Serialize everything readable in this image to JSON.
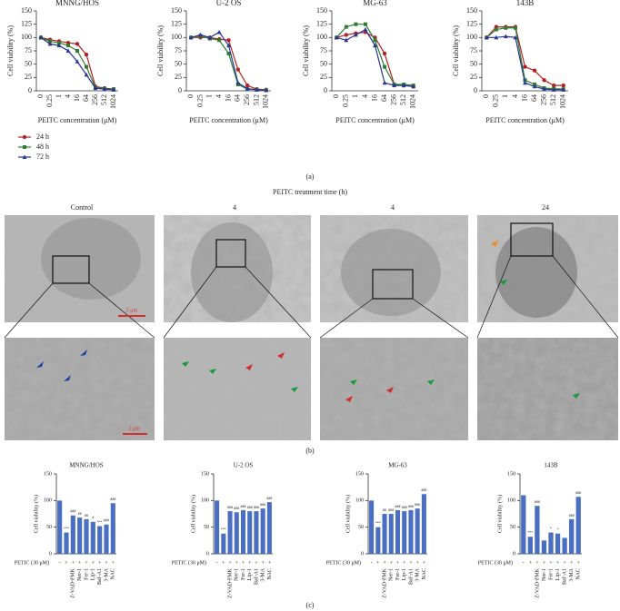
{
  "chart_data": [
    {
      "type": "line",
      "title": "MNNG/HOS",
      "ylabel": "Cell viability (%)",
      "xlabel": "PEITC concentration (μM)",
      "categories": [
        "0",
        "0.25",
        "1",
        "4",
        "16",
        "64",
        "256",
        "512",
        "1024"
      ],
      "ylim": [
        0,
        150
      ],
      "yticks": [
        0,
        25,
        50,
        75,
        100,
        125,
        150
      ],
      "legend": true,
      "series": [
        {
          "name": "24 h",
          "color": "#b22222",
          "marker": "circle",
          "values": [
            100,
            96,
            93,
            90,
            88,
            68,
            8,
            5,
            3
          ]
        },
        {
          "name": "48 h",
          "color": "#2e7d32",
          "marker": "square",
          "values": [
            100,
            93,
            90,
            85,
            75,
            45,
            6,
            4,
            3
          ]
        },
        {
          "name": "72 h",
          "color": "#283593",
          "marker": "triangle",
          "values": [
            100,
            88,
            85,
            75,
            55,
            30,
            5,
            3,
            2
          ]
        }
      ]
    },
    {
      "type": "line",
      "title": "U-2 OS",
      "ylabel": "Cell viability (%)",
      "xlabel": "PEITC concentration (μM)",
      "categories": [
        "0",
        "0.25",
        "1",
        "4",
        "16",
        "64",
        "256",
        "512",
        "1024"
      ],
      "ylim": [
        0,
        150
      ],
      "yticks": [
        0,
        25,
        50,
        75,
        100,
        125,
        150
      ],
      "series": [
        {
          "color": "#b22222",
          "marker": "circle",
          "values": [
            100,
            100,
            100,
            97,
            95,
            40,
            10,
            3,
            2
          ]
        },
        {
          "color": "#2e7d32",
          "marker": "square",
          "values": [
            100,
            103,
            98,
            95,
            70,
            12,
            3,
            2,
            1
          ]
        },
        {
          "color": "#283593",
          "marker": "triangle",
          "values": [
            100,
            105,
            100,
            110,
            85,
            15,
            4,
            2,
            1
          ]
        }
      ]
    },
    {
      "type": "line",
      "title": "MG-63",
      "ylabel": "Cell viability (%)",
      "xlabel": "PEITC concentration (μM)",
      "categories": [
        "0",
        "0.25",
        "1",
        "4",
        "16",
        "64",
        "256",
        "512",
        "1024"
      ],
      "ylim": [
        0,
        150
      ],
      "yticks": [
        0,
        25,
        50,
        75,
        100,
        125,
        150
      ],
      "series": [
        {
          "color": "#b22222",
          "marker": "circle",
          "values": [
            100,
            105,
            108,
            110,
            100,
            70,
            12,
            10,
            8
          ]
        },
        {
          "color": "#2e7d32",
          "marker": "square",
          "values": [
            100,
            120,
            125,
            125,
            95,
            45,
            12,
            12,
            10
          ]
        },
        {
          "color": "#283593",
          "marker": "triangle",
          "values": [
            100,
            95,
            105,
            115,
            85,
            15,
            10,
            10,
            8
          ]
        }
      ]
    },
    {
      "type": "line",
      "title": "143B",
      "ylabel": "Cell viability (%)",
      "xlabel": "PEITC concentration (μM)",
      "categories": [
        "0",
        "0.25",
        "1",
        "4",
        "16",
        "64",
        "256",
        "512",
        "1024"
      ],
      "ylim": [
        0,
        150
      ],
      "yticks": [
        0,
        25,
        50,
        75,
        100,
        125,
        150
      ],
      "series": [
        {
          "color": "#b22222",
          "marker": "circle",
          "values": [
            100,
            120,
            120,
            120,
            45,
            38,
            20,
            10,
            10
          ]
        },
        {
          "color": "#2e7d32",
          "marker": "square",
          "values": [
            100,
            115,
            118,
            118,
            20,
            12,
            5,
            4,
            3
          ]
        },
        {
          "color": "#283593",
          "marker": "triangle",
          "values": [
            100,
            100,
            102,
            100,
            15,
            8,
            3,
            2,
            2
          ]
        }
      ]
    },
    {
      "type": "bar",
      "title": "MNNG/HOS",
      "ylabel": "Cell viability (%)",
      "row_label": "PETIC (30 μM)",
      "color": "#4a6fc1",
      "treatment_row": [
        "-",
        "+",
        "+",
        "+",
        "+",
        "+",
        "+",
        "+",
        "+"
      ],
      "categories": [
        null,
        null,
        "Z-VAD-FMK",
        "Ner-1",
        "Fer-1",
        "Lip-1",
        "Baf-A1",
        "3-MA",
        "NAC"
      ],
      "values": [
        100,
        40,
        72,
        68,
        65,
        60,
        52,
        55,
        95
      ],
      "annotations": [
        null,
        "***",
        "###",
        "##",
        "##",
        "#",
        "***",
        "###",
        "###"
      ],
      "ylim": [
        0,
        150
      ],
      "yticks": [
        0,
        50,
        100,
        150
      ]
    },
    {
      "type": "bar",
      "title": "U-2 OS",
      "ylabel": "Cell viability (%)",
      "row_label": "PETIC (30 μM)",
      "color": "#4a6fc1",
      "treatment_row": [
        "-",
        "+",
        "+",
        "+",
        "+",
        "+",
        "+",
        "+",
        "+"
      ],
      "categories": [
        null,
        null,
        "Z-VAD-FMK",
        "Ner-1",
        "Fer-1",
        "Lip-1",
        "Baf-A1",
        "3-MA",
        "NAC"
      ],
      "values": [
        100,
        38,
        80,
        78,
        82,
        80,
        80,
        85,
        97
      ],
      "annotations": [
        null,
        "***",
        "###",
        "###",
        "###",
        "###",
        "###",
        "###",
        "###"
      ],
      "ylim": [
        0,
        150
      ],
      "yticks": [
        0,
        50,
        100,
        150
      ]
    },
    {
      "type": "bar",
      "title": "MG-63",
      "ylabel": "Cell viability (%)",
      "row_label": "PETIC (30 μM)",
      "color": "#4a6fc1",
      "treatment_row": [
        "-",
        "+",
        "+",
        "+",
        "+",
        "+",
        "+",
        "+",
        "+"
      ],
      "categories": [
        null,
        null,
        "Z-VAD-FMK",
        "Ner-1",
        "Fer-1",
        "Lip-1",
        "Baf-A1",
        "3-MA",
        "NAC"
      ],
      "values": [
        100,
        50,
        75,
        75,
        82,
        80,
        82,
        85,
        112
      ],
      "annotations": [
        null,
        "***",
        "##",
        "###",
        "###",
        "###",
        "###",
        "###",
        "###"
      ],
      "ylim": [
        0,
        150
      ],
      "yticks": [
        0,
        50,
        100,
        150
      ]
    },
    {
      "type": "bar",
      "title": "143B",
      "ylabel": "Cell viability (%)",
      "row_label": "PETIC (30 μM)",
      "color": "#4a6fc1",
      "treatment_row": [
        "-",
        "+",
        "+",
        "+",
        "+",
        "+",
        "+",
        "+",
        "+"
      ],
      "categories": [
        null,
        null,
        "Z-VAD-FMK",
        "Ner-1",
        "Fer-1",
        "Lip-1",
        "Baf-A1",
        "3-MA",
        "NAC"
      ],
      "values": [
        110,
        32,
        90,
        25,
        40,
        38,
        30,
        65,
        107
      ],
      "annotations": [
        null,
        "***",
        "###",
        null,
        "*",
        "*",
        null,
        "###",
        "###"
      ],
      "ylim": [
        0,
        150
      ],
      "yticks": [
        0,
        50,
        100,
        150
      ]
    }
  ],
  "panels": {
    "a": "(a)",
    "b": "(b)",
    "c": "(c)"
  },
  "tem": {
    "title": "PEITC treatment time (h)",
    "columns": [
      "Control",
      "4",
      "4",
      "24"
    ],
    "scale_bars": [
      "5 μm",
      "2 μm"
    ]
  }
}
